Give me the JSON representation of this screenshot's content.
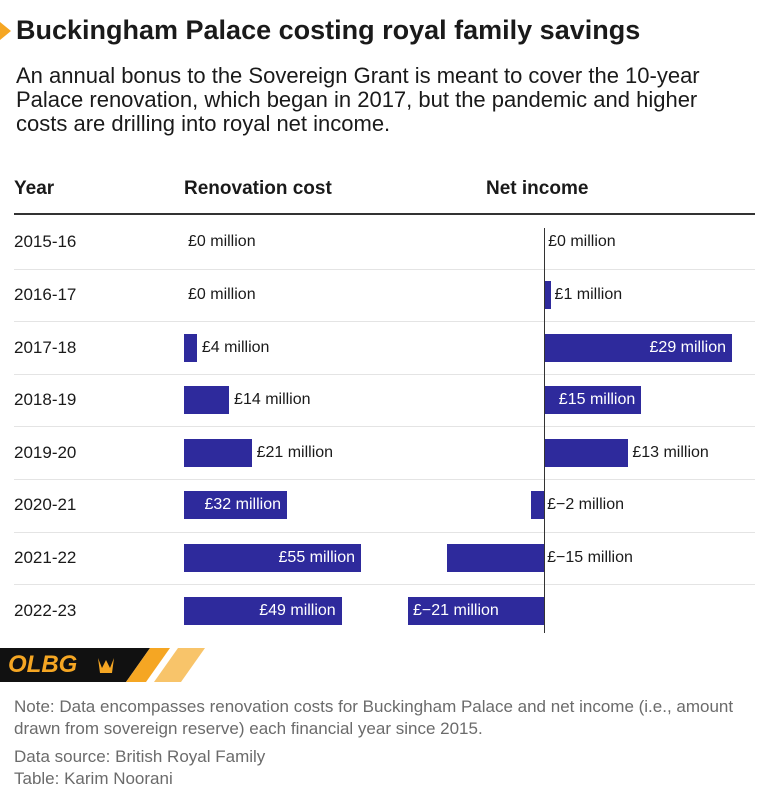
{
  "header": {
    "title": "Buckingham Palace costing royal family savings",
    "subtitle": "An annual bonus to the Sovereign Grant is meant to cover the 10-year Palace renovation, which began in 2017, but the pandemic and higher costs are drilling into royal net income."
  },
  "table": {
    "columns": [
      "Year",
      "Renovation cost",
      "Net income"
    ],
    "bar_color": "#2e2a9c",
    "rows": [
      {
        "year": "2015-16",
        "renovation_cost": 0,
        "renovation_label": "£0 million",
        "net_income": 0,
        "net_income_label": "£0 million"
      },
      {
        "year": "2016-17",
        "renovation_cost": 0,
        "renovation_label": "£0 million",
        "net_income": 1,
        "net_income_label": "£1 million"
      },
      {
        "year": "2017-18",
        "renovation_cost": 4,
        "renovation_label": "£4 million",
        "net_income": 29,
        "net_income_label": "£29 million"
      },
      {
        "year": "2018-19",
        "renovation_cost": 14,
        "renovation_label": "£14 million",
        "net_income": 15,
        "net_income_label": "£15 million"
      },
      {
        "year": "2019-20",
        "renovation_cost": 21,
        "renovation_label": "£21 million",
        "net_income": 13,
        "net_income_label": "£13 million"
      },
      {
        "year": "2020-21",
        "renovation_cost": 32,
        "renovation_label": "£32 million",
        "net_income": -2,
        "net_income_label": "£−2 million"
      },
      {
        "year": "2021-22",
        "renovation_cost": 55,
        "renovation_label": "£55 million",
        "net_income": -15,
        "net_income_label": "£−15 million"
      },
      {
        "year": "2022-23",
        "renovation_cost": 49,
        "renovation_label": "£49 million",
        "net_income": -21,
        "net_income_label": "£−21 million"
      }
    ]
  },
  "logo": "OLBG",
  "footer": {
    "note": "Note: Data encompasses renovation costs for Buckingham Palace and net income (i.e., amount drawn from sovereign reserve) each financial year since 2015.",
    "source": "Data source: British Royal Family",
    "credit": "Table: Karim Noorani"
  }
}
